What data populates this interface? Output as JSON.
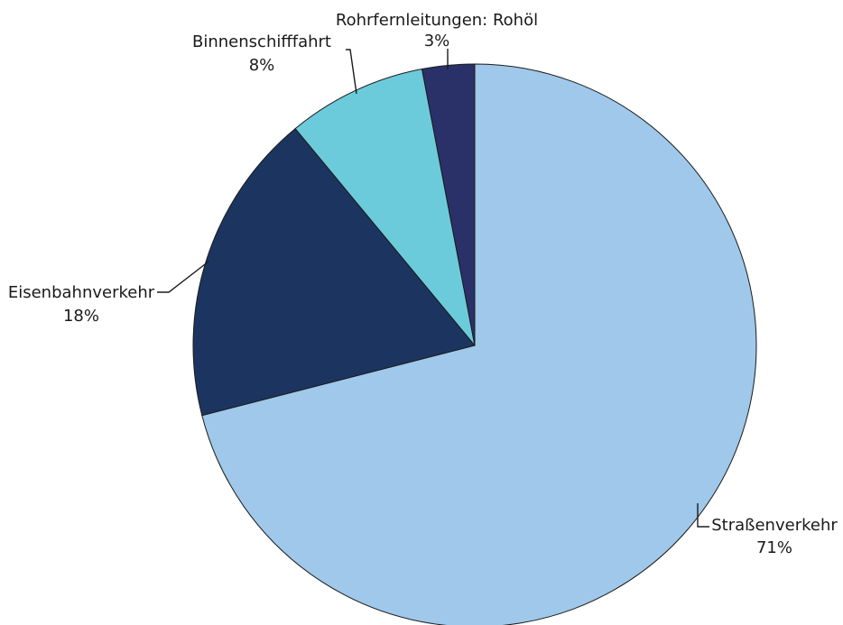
{
  "chart_data": {
    "type": "pie",
    "start_angle": "12 o'clock",
    "direction": "clockwise",
    "slices": [
      {
        "name": "Straßenverkehr",
        "value": 71,
        "label": "71%",
        "color": "#9fc8ea"
      },
      {
        "name": "Eisenbahnverkehr",
        "value": 18,
        "label": "18%",
        "color": "#1c3560"
      },
      {
        "name": "Binnenschifffahrt",
        "value": 8,
        "label": "8%",
        "color": "#6ccbdb"
      },
      {
        "name": "Rohrfernleitungen: Rohöl",
        "value": 3,
        "label": "3%",
        "color": "#2a3169"
      }
    ]
  }
}
